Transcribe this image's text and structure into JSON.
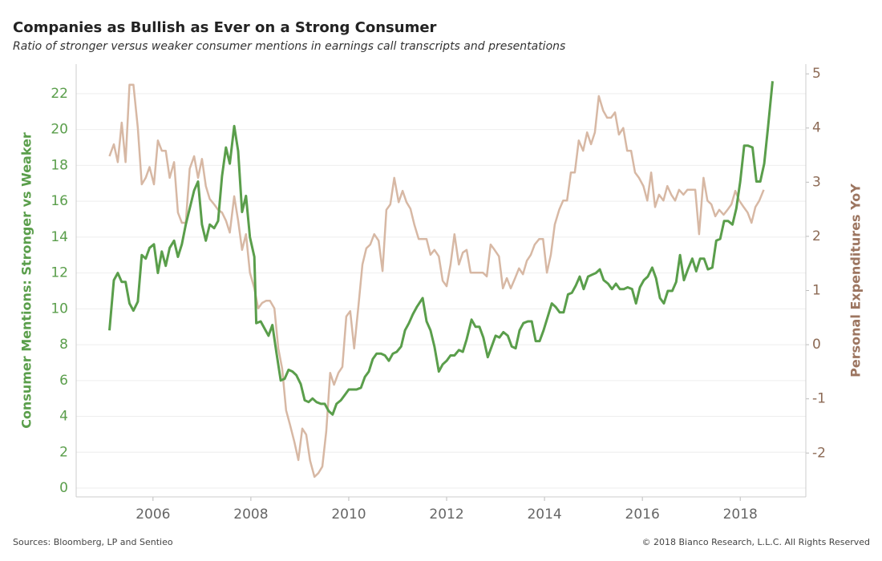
{
  "chart_data": {
    "type": "line",
    "title": "Companies as Bullish as Ever on a Strong Consumer",
    "subtitle": "Ratio of stronger versus weaker consumer mentions in earnings call transcripts and presentations",
    "y_label": "Consumer Mentions: Stronger vs Weaker",
    "y2_label": "Personal Expenditures YoY",
    "source": "Sources: Bloomberg, LP and Sentieo",
    "copyright": "© 2018 Bianco Research, L.L.C. All Rights Reserved",
    "xlim": [
      2004.43,
      2019.34
    ],
    "xticks": [
      2006,
      2008,
      2010,
      2012,
      2014,
      2016,
      2018
    ],
    "ylim": [
      -0.49,
      23.65
    ],
    "yticks": [
      0,
      2,
      4,
      6,
      8,
      10,
      12,
      14,
      16,
      18,
      20,
      22
    ],
    "y2lim": [
      -2.81,
      5.18
    ],
    "y2ticks": [
      -2,
      -1,
      0,
      1,
      2,
      3,
      4,
      5
    ],
    "grid": true,
    "series": [
      {
        "name": "Consumer Mentions: Stronger vs Weaker",
        "color": "#5a9e4b",
        "axis": "y",
        "x": [
          2005.11,
          2005.2,
          2005.28,
          2005.36,
          2005.44,
          2005.52,
          2005.6,
          2005.69,
          2005.77,
          2005.85,
          2005.93,
          2006.02,
          2006.1,
          2006.18,
          2006.26,
          2006.34,
          2006.43,
          2006.51,
          2006.59,
          2006.67,
          2006.75,
          2006.84,
          2006.92,
          2007.0,
          2007.08,
          2007.16,
          2007.25,
          2007.33,
          2007.41,
          2007.49,
          2007.57,
          2007.66,
          2007.74,
          2007.82,
          2007.9,
          2007.98,
          2008.07,
          2008.11,
          2008.2,
          2008.28,
          2008.36,
          2008.44,
          2008.52,
          2008.61,
          2008.69,
          2008.77,
          2008.85,
          2008.93,
          2009.02,
          2009.1,
          2009.18,
          2009.26,
          2009.34,
          2009.43,
          2009.51,
          2009.59,
          2009.67,
          2009.75,
          2009.84,
          2009.92,
          2010.0,
          2010.08,
          2010.16,
          2010.25,
          2010.33,
          2010.41,
          2010.49,
          2010.57,
          2010.66,
          2010.74,
          2010.82,
          2010.9,
          2010.98,
          2011.07,
          2011.15,
          2011.23,
          2011.31,
          2011.39,
          2011.51,
          2011.59,
          2011.67,
          2011.75,
          2011.84,
          2011.92,
          2012.0,
          2012.08,
          2012.16,
          2012.25,
          2012.33,
          2012.41,
          2012.51,
          2012.59,
          2012.67,
          2012.75,
          2012.84,
          2012.92,
          2013.0,
          2013.08,
          2013.16,
          2013.25,
          2013.33,
          2013.41,
          2013.49,
          2013.57,
          2013.66,
          2013.74,
          2013.82,
          2013.9,
          2013.98,
          2014.07,
          2014.15,
          2014.23,
          2014.31,
          2014.39,
          2014.48,
          2014.56,
          2014.64,
          2014.72,
          2014.8,
          2014.89,
          2014.97,
          2015.05,
          2015.13,
          2015.21,
          2015.3,
          2015.38,
          2015.46,
          2015.54,
          2015.62,
          2015.7,
          2015.79,
          2015.87,
          2015.95,
          2016.03,
          2016.11,
          2016.2,
          2016.28,
          2016.36,
          2016.44,
          2016.52,
          2016.61,
          2016.69,
          2016.77,
          2016.85,
          2016.93,
          2017.02,
          2017.1,
          2017.18,
          2017.26,
          2017.34,
          2017.43,
          2017.51,
          2017.59,
          2017.67,
          2017.75,
          2017.84,
          2017.92,
          2018.0,
          2018.08,
          2018.16,
          2018.25,
          2018.33,
          2018.41,
          2018.49,
          2018.57,
          2018.66
        ],
        "values": [
          8.8,
          11.6,
          12.0,
          11.5,
          11.5,
          10.3,
          9.9,
          10.4,
          13.0,
          12.8,
          13.4,
          13.6,
          12.0,
          13.2,
          12.4,
          13.4,
          13.8,
          12.9,
          13.6,
          14.7,
          15.6,
          16.6,
          17.1,
          14.7,
          13.8,
          14.7,
          14.5,
          14.9,
          17.4,
          19.0,
          18.1,
          20.2,
          18.8,
          15.4,
          16.3,
          14.0,
          12.9,
          9.2,
          9.3,
          8.9,
          8.5,
          9.1,
          7.6,
          6.0,
          6.1,
          6.6,
          6.5,
          6.3,
          5.8,
          4.9,
          4.8,
          5.0,
          4.8,
          4.7,
          4.7,
          4.3,
          4.1,
          4.7,
          4.9,
          5.2,
          5.5,
          5.5,
          5.5,
          5.6,
          6.2,
          6.5,
          7.2,
          7.5,
          7.5,
          7.4,
          7.1,
          7.5,
          7.6,
          7.9,
          8.8,
          9.2,
          9.7,
          10.1,
          10.6,
          9.3,
          8.8,
          7.9,
          6.5,
          6.9,
          7.1,
          7.4,
          7.4,
          7.7,
          7.6,
          8.3,
          9.4,
          9.0,
          9.0,
          8.4,
          7.3,
          7.9,
          8.5,
          8.4,
          8.7,
          8.5,
          7.9,
          7.8,
          8.8,
          9.2,
          9.3,
          9.3,
          8.2,
          8.2,
          8.8,
          9.6,
          10.3,
          10.1,
          9.8,
          9.8,
          10.8,
          10.9,
          11.3,
          11.8,
          11.1,
          11.8,
          11.9,
          12.0,
          12.2,
          11.6,
          11.4,
          11.1,
          11.4,
          11.1,
          11.1,
          11.2,
          11.1,
          10.3,
          11.2,
          11.6,
          11.8,
          12.3,
          11.7,
          10.6,
          10.3,
          11.0,
          11.0,
          11.5,
          13.0,
          11.6,
          12.2,
          12.8,
          12.1,
          12.8,
          12.8,
          12.2,
          12.3,
          13.8,
          13.9,
          14.9,
          14.9,
          14.7,
          15.6,
          17.1,
          19.1,
          19.1,
          19.0,
          17.1,
          17.1,
          18.1,
          20.2,
          22.7
        ]
      },
      {
        "name": "Personal Expenditures YoY",
        "color": "#d7b8a4",
        "axis": "y2",
        "x": [
          2005.11,
          2005.2,
          2005.28,
          2005.36,
          2005.44,
          2005.52,
          2005.6,
          2005.69,
          2005.77,
          2005.85,
          2005.93,
          2006.02,
          2006.1,
          2006.18,
          2006.26,
          2006.34,
          2006.43,
          2006.51,
          2006.59,
          2006.67,
          2006.75,
          2006.84,
          2006.92,
          2007.0,
          2007.08,
          2007.16,
          2007.25,
          2007.33,
          2007.41,
          2007.49,
          2007.57,
          2007.66,
          2007.74,
          2007.82,
          2007.9,
          2007.98,
          2008.07,
          2008.15,
          2008.23,
          2008.31,
          2008.39,
          2008.48,
          2008.56,
          2008.64,
          2008.72,
          2008.8,
          2008.89,
          2008.97,
          2009.05,
          2009.13,
          2009.21,
          2009.3,
          2009.38,
          2009.46,
          2009.54,
          2009.62,
          2009.7,
          2009.79,
          2009.87,
          2009.95,
          2010.03,
          2010.11,
          2010.2,
          2010.28,
          2010.36,
          2010.44,
          2010.52,
          2010.61,
          2010.69,
          2010.77,
          2010.85,
          2010.93,
          2011.02,
          2011.1,
          2011.18,
          2011.26,
          2011.34,
          2011.43,
          2011.51,
          2011.59,
          2011.67,
          2011.75,
          2011.84,
          2011.92,
          2012.0,
          2012.08,
          2012.16,
          2012.25,
          2012.33,
          2012.41,
          2012.49,
          2012.57,
          2012.66,
          2012.74,
          2012.82,
          2012.9,
          2012.98,
          2013.07,
          2013.15,
          2013.23,
          2013.31,
          2013.39,
          2013.48,
          2013.56,
          2013.64,
          2013.72,
          2013.8,
          2013.89,
          2013.97,
          2014.05,
          2014.13,
          2014.21,
          2014.3,
          2014.38,
          2014.46,
          2014.54,
          2014.62,
          2014.7,
          2014.79,
          2014.87,
          2014.95,
          2015.03,
          2015.11,
          2015.2,
          2015.28,
          2015.36,
          2015.44,
          2015.52,
          2015.61,
          2015.69,
          2015.77,
          2015.85,
          2015.93,
          2016.02,
          2016.1,
          2016.18,
          2016.26,
          2016.34,
          2016.43,
          2016.51,
          2016.59,
          2016.67,
          2016.75,
          2016.84,
          2016.92,
          2017.0,
          2017.08,
          2017.16,
          2017.25,
          2017.33,
          2017.41,
          2017.49,
          2017.57,
          2017.66,
          2017.74,
          2017.82,
          2017.9,
          2017.98,
          2018.07,
          2018.15,
          2018.23,
          2018.31,
          2018.39,
          2018.48
        ],
        "values": [
          3.48,
          3.7,
          3.37,
          4.1,
          3.37,
          4.8,
          4.8,
          4.0,
          2.96,
          3.08,
          3.28,
          2.96,
          3.77,
          3.58,
          3.58,
          3.08,
          3.37,
          2.44,
          2.25,
          2.25,
          3.25,
          3.48,
          3.08,
          3.43,
          2.93,
          2.69,
          2.59,
          2.49,
          2.44,
          2.29,
          2.07,
          2.74,
          2.29,
          1.75,
          2.04,
          1.33,
          1.04,
          0.67,
          0.77,
          0.81,
          0.81,
          0.67,
          -0.07,
          -0.44,
          -1.21,
          -1.48,
          -1.8,
          -2.13,
          -1.55,
          -1.66,
          -2.14,
          -2.44,
          -2.37,
          -2.25,
          -1.6,
          -0.52,
          -0.74,
          -0.52,
          -0.41,
          0.52,
          0.62,
          -0.07,
          0.74,
          1.48,
          1.78,
          1.85,
          2.04,
          1.92,
          1.36,
          2.49,
          2.59,
          3.08,
          2.63,
          2.84,
          2.63,
          2.51,
          2.22,
          1.95,
          1.95,
          1.95,
          1.66,
          1.75,
          1.63,
          1.18,
          1.08,
          1.48,
          2.04,
          1.48,
          1.7,
          1.75,
          1.33,
          1.33,
          1.33,
          1.33,
          1.26,
          1.85,
          1.75,
          1.63,
          1.04,
          1.23,
          1.04,
          1.21,
          1.41,
          1.3,
          1.55,
          1.66,
          1.85,
          1.95,
          1.95,
          1.33,
          1.66,
          2.22,
          2.49,
          2.66,
          2.66,
          3.18,
          3.18,
          3.77,
          3.58,
          3.92,
          3.7,
          3.92,
          4.59,
          4.32,
          4.19,
          4.19,
          4.29,
          3.88,
          4.0,
          3.58,
          3.58,
          3.18,
          3.08,
          2.93,
          2.66,
          3.18,
          2.54,
          2.77,
          2.66,
          2.93,
          2.77,
          2.66,
          2.86,
          2.77,
          2.86,
          2.86,
          2.86,
          2.04,
          3.08,
          2.66,
          2.59,
          2.37,
          2.49,
          2.4,
          2.49,
          2.59,
          2.84,
          2.66,
          2.54,
          2.44,
          2.25,
          2.54,
          2.66,
          2.86
        ]
      }
    ]
  }
}
